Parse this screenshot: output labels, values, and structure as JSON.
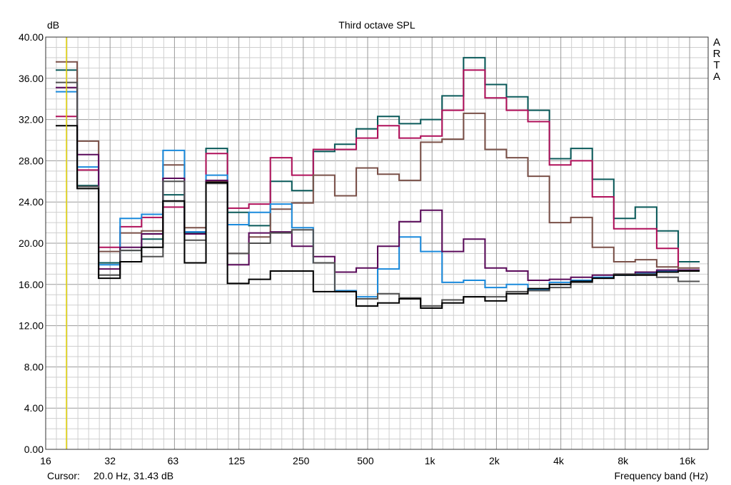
{
  "chart_data": {
    "type": "line",
    "step": true,
    "title": "Third octave SPL",
    "ylabel": "dB",
    "xlabel": "Frequency band (Hz)",
    "watermark": [
      "A",
      "R",
      "T",
      "A"
    ],
    "cursor": {
      "label": "Cursor:",
      "value": "20.0 Hz, 31.43 dB",
      "frequency": 20.0,
      "color": "#e0d000"
    },
    "x_scale": "log",
    "xlim": [
      16,
      20000
    ],
    "ylim": [
      0,
      40
    ],
    "grid": true,
    "yticks": [
      "0.00",
      "4.00",
      "8.00",
      "12.00",
      "16.00",
      "20.00",
      "24.00",
      "28.00",
      "32.00",
      "36.00",
      "40.00"
    ],
    "xticks": [
      {
        "label": "16",
        "value": 16
      },
      {
        "label": "32",
        "value": 32
      },
      {
        "label": "63",
        "value": 63
      },
      {
        "label": "125",
        "value": 125
      },
      {
        "label": "250",
        "value": 250
      },
      {
        "label": "500",
        "value": 500
      },
      {
        "label": "1k",
        "value": 1000
      },
      {
        "label": "2k",
        "value": 2000
      },
      {
        "label": "4k",
        "value": 4000
      },
      {
        "label": "8k",
        "value": 8000
      },
      {
        "label": "16k",
        "value": 16000
      }
    ],
    "bands": [
      "20",
      "25",
      "31.5",
      "40",
      "50",
      "63",
      "80",
      "100",
      "125",
      "160",
      "200",
      "250",
      "315",
      "400",
      "500",
      "630",
      "800",
      "1k",
      "1.25k",
      "1.6k",
      "2k",
      "2.5k",
      "3.15k",
      "4k",
      "5k",
      "6.3k",
      "8k",
      "10k",
      "12.5k",
      "16k"
    ],
    "series": [
      {
        "color": "#0a5a5a",
        "values": [
          36.8,
          25.6,
          18.1,
          19.3,
          20.4,
          24.7,
          21.0,
          29.2,
          23.0,
          21.7,
          26.0,
          25.1,
          28.9,
          29.6,
          31.1,
          32.3,
          31.6,
          32.0,
          34.3,
          38.0,
          35.4,
          34.2,
          32.9,
          28.2,
          29.2,
          26.2,
          22.4,
          23.5,
          21.2,
          18.2
        ]
      },
      {
        "color": "#b0105a",
        "values": [
          32.3,
          27.1,
          19.6,
          21.6,
          22.5,
          23.5,
          21.1,
          28.7,
          23.4,
          23.8,
          28.3,
          26.6,
          29.1,
          29.1,
          30.2,
          31.4,
          30.2,
          30.4,
          32.9,
          36.8,
          34.1,
          32.9,
          31.8,
          27.6,
          28.0,
          24.5,
          21.4,
          21.4,
          19.5,
          17.4
        ]
      },
      {
        "color": "#7a5048",
        "values": [
          37.6,
          29.9,
          19.2,
          21.0,
          21.2,
          27.6,
          21.5,
          26.0,
          19.0,
          20.6,
          23.3,
          23.9,
          26.6,
          24.6,
          27.3,
          26.7,
          26.1,
          29.8,
          30.1,
          32.6,
          29.1,
          28.3,
          26.5,
          22.0,
          22.5,
          19.6,
          18.2,
          18.4,
          17.7,
          17.6
        ]
      },
      {
        "color": "#1a8adc",
        "values": [
          34.7,
          27.4,
          17.9,
          22.4,
          22.8,
          29.0,
          21.1,
          26.6,
          21.8,
          23.0,
          23.8,
          21.5,
          18.1,
          15.4,
          14.8,
          17.5,
          20.6,
          19.2,
          16.2,
          16.4,
          15.7,
          16.0,
          15.5,
          16.2,
          16.4,
          16.7,
          16.9,
          17.1,
          17.3,
          17.4
        ]
      },
      {
        "color": "#5a0a5a",
        "values": [
          35.1,
          28.6,
          17.5,
          19.6,
          20.9,
          26.3,
          20.9,
          26.1,
          17.9,
          21.0,
          21.1,
          19.7,
          18.7,
          17.2,
          17.6,
          19.7,
          22.1,
          23.2,
          19.2,
          20.4,
          17.6,
          17.3,
          16.4,
          16.5,
          16.7,
          16.9,
          17.0,
          17.2,
          17.4,
          17.4
        ]
      },
      {
        "color": "#505050",
        "values": [
          35.6,
          25.5,
          16.9,
          19.3,
          18.7,
          26.0,
          20.3,
          25.8,
          19.0,
          20.0,
          21.0,
          21.3,
          18.1,
          15.3,
          14.6,
          15.1,
          14.7,
          13.9,
          14.5,
          14.8,
          14.8,
          15.3,
          15.4,
          15.7,
          16.2,
          16.6,
          17.0,
          17.0,
          16.7,
          16.3
        ]
      },
      {
        "color": "#000000",
        "values": [
          31.4,
          25.3,
          16.6,
          18.2,
          19.6,
          24.1,
          18.1,
          25.9,
          16.1,
          16.5,
          17.3,
          17.3,
          15.3,
          15.3,
          13.9,
          14.2,
          14.6,
          13.7,
          14.2,
          14.8,
          14.4,
          15.1,
          15.6,
          16.0,
          16.3,
          16.6,
          16.9,
          16.9,
          17.2,
          17.3
        ]
      }
    ]
  }
}
